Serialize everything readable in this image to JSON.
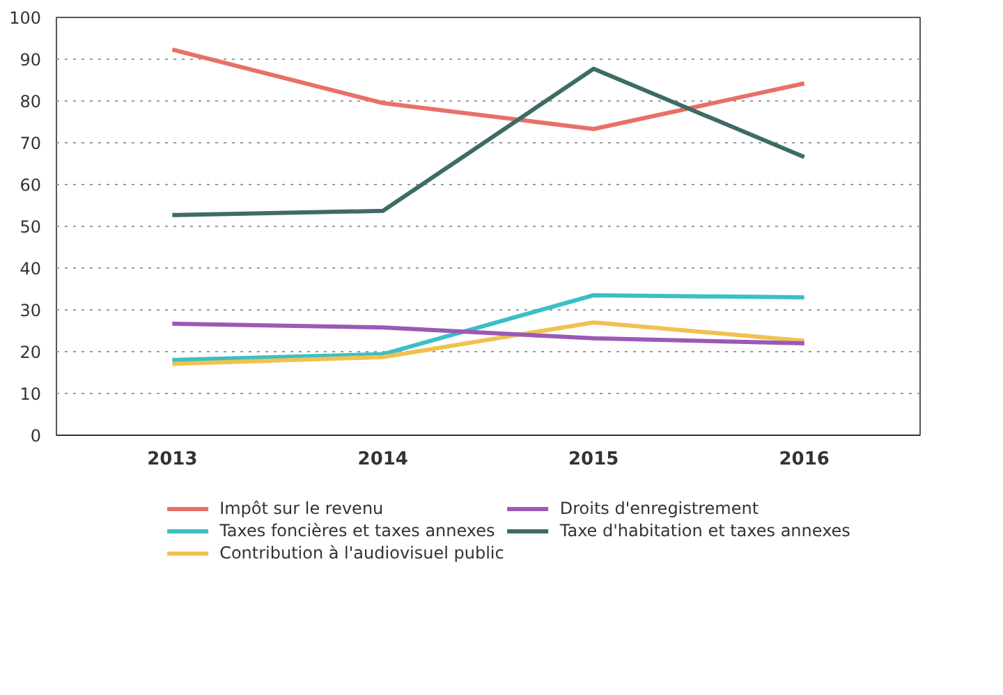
{
  "chart_data": {
    "type": "line",
    "categories": [
      "2013",
      "2014",
      "2015",
      "2016"
    ],
    "ylim": [
      0,
      100
    ],
    "yticks": [
      0,
      10,
      20,
      30,
      40,
      50,
      60,
      70,
      80,
      90,
      100
    ],
    "grid": "y",
    "legend": "bottom",
    "marker": "none",
    "line_style": "solid",
    "series": [
      {
        "name": "Impôt sur le revenu",
        "color": "#e8706a",
        "values": [
          92.3,
          79.5,
          73.3,
          84.2
        ]
      },
      {
        "name": "Taxes foncières et taxes annexes",
        "color": "#3bbfc4",
        "values": [
          18.0,
          19.4,
          33.5,
          33.0
        ]
      },
      {
        "name": "Contribution à l'audiovisuel public",
        "color": "#f0c24e",
        "values": [
          17.1,
          18.7,
          27.0,
          22.6
        ]
      },
      {
        "name": "Droits d'enregistrement",
        "color": "#9b59b6",
        "values": [
          26.7,
          25.8,
          23.2,
          22.0
        ]
      },
      {
        "name": "Taxe d'habitation et taxes annexes",
        "color": "#3e6b66",
        "values": [
          52.7,
          53.7,
          87.7,
          66.6
        ]
      }
    ]
  }
}
